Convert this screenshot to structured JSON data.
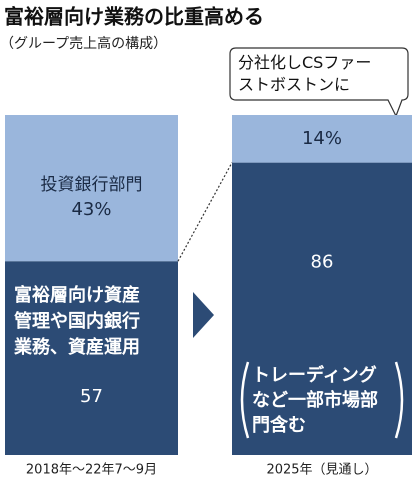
{
  "chart_data": {
    "type": "stacked_bar",
    "title": "富裕層向け業務の比重高める",
    "subtitle": "（グループ売上高の構成）",
    "categories": [
      "2018年～22年7～9月",
      "2025年（見通し）"
    ],
    "ylim": [
      0,
      100
    ],
    "series": [
      {
        "name": "富裕層向け資産管理や国内銀行業務、資産運用",
        "color": "#2c4b75",
        "values": [
          57,
          86
        ]
      },
      {
        "name": "投資銀行部門",
        "color": "#9ab6dc",
        "values": [
          43,
          14
        ],
        "value_labels": [
          "43%",
          "14%"
        ]
      }
    ],
    "annotations": [
      "トレーディングなど一部市場部門含む",
      "分社化しCSファーストボストンに"
    ]
  }
}
